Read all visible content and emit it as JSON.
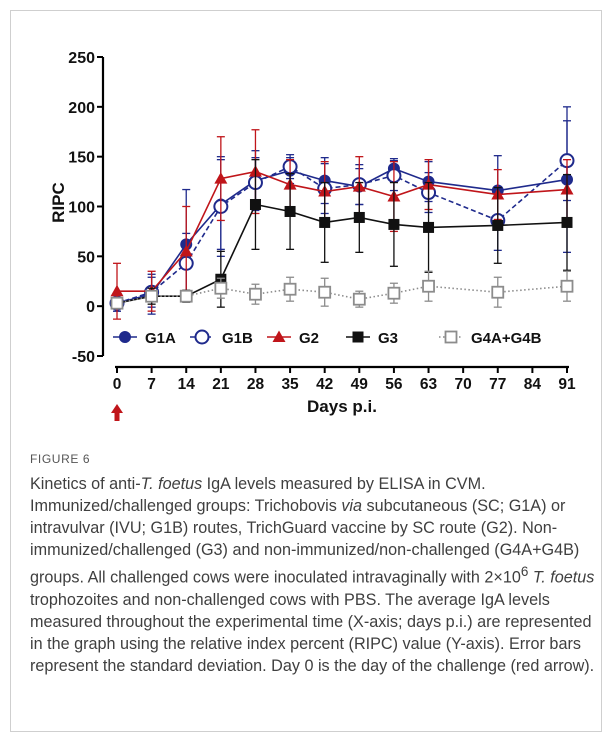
{
  "chart_data": {
    "type": "line",
    "xlabel": "Days p.i.",
    "ylabel": "RIPC",
    "x": [
      0,
      7,
      14,
      21,
      28,
      35,
      42,
      49,
      56,
      63,
      70,
      77,
      84,
      91
    ],
    "x_ticks": [
      "0",
      "7",
      "14",
      "21",
      "28",
      "35",
      "42",
      "49",
      "56",
      "63",
      "70",
      "77",
      "84",
      "91"
    ],
    "xlim": [
      0,
      91
    ],
    "ylim": [
      -50,
      250
    ],
    "y_ticks": [
      "250",
      "200",
      "150",
      "100",
      "50",
      "0",
      "-50"
    ],
    "grid": false,
    "legend_position": "bottom-inside",
    "series": [
      {
        "name": "G1A",
        "marker": "filled-circle",
        "line": "solid",
        "color": "#1f2a8c",
        "points": [
          {
            "x": 0,
            "y": 3,
            "err": 8
          },
          {
            "x": 7,
            "y": 12,
            "err": 20
          },
          {
            "x": 14,
            "y": 62,
            "err": 55
          },
          {
            "x": 21,
            "y": 102,
            "err": 45
          },
          {
            "x": 28,
            "y": 126,
            "err": 30
          },
          {
            "x": 35,
            "y": 136,
            "err": 13
          },
          {
            "x": 42,
            "y": 126,
            "err": 23
          },
          {
            "x": 49,
            "y": 120,
            "err": 18
          },
          {
            "x": 56,
            "y": 138,
            "err": 10
          },
          {
            "x": 63,
            "y": 125,
            "err": 20
          },
          {
            "x": 77,
            "y": 116,
            "err": 35
          },
          {
            "x": 91,
            "y": 127,
            "err": 73
          }
        ]
      },
      {
        "name": "G1B",
        "marker": "open-circle",
        "line": "dashed",
        "color": "#1f2a8c",
        "points": [
          {
            "x": 0,
            "y": 3,
            "err": 8
          },
          {
            "x": 7,
            "y": 14,
            "err": 15
          },
          {
            "x": 14,
            "y": 43,
            "err": 30
          },
          {
            "x": 21,
            "y": 100,
            "err": 50
          },
          {
            "x": 28,
            "y": 124,
            "err": 25
          },
          {
            "x": 35,
            "y": 140,
            "err": 12
          },
          {
            "x": 42,
            "y": 118,
            "err": 25
          },
          {
            "x": 49,
            "y": 122,
            "err": 20
          },
          {
            "x": 56,
            "y": 131,
            "err": 15
          },
          {
            "x": 63,
            "y": 114,
            "err": 20
          },
          {
            "x": 77,
            "y": 86,
            "err": 30
          },
          {
            "x": 91,
            "y": 146,
            "err": 40
          }
        ]
      },
      {
        "name": "G2",
        "marker": "filled-triangle",
        "line": "solid",
        "color": "#c0151a",
        "points": [
          {
            "x": 0,
            "y": 15,
            "err": 28
          },
          {
            "x": 7,
            "y": 15,
            "err": 20
          },
          {
            "x": 14,
            "y": 55,
            "err": 45
          },
          {
            "x": 21,
            "y": 128,
            "err": 42
          },
          {
            "x": 28,
            "y": 135,
            "err": 42
          },
          {
            "x": 35,
            "y": 122,
            "err": 25
          },
          {
            "x": 42,
            "y": 115,
            "err": 30
          },
          {
            "x": 49,
            "y": 120,
            "err": 30
          },
          {
            "x": 56,
            "y": 110,
            "err": 35
          },
          {
            "x": 63,
            "y": 122,
            "err": 25
          },
          {
            "x": 77,
            "y": 112,
            "err": 25
          },
          {
            "x": 91,
            "y": 117,
            "err": 30
          }
        ]
      },
      {
        "name": "G3",
        "marker": "filled-square",
        "line": "solid",
        "color": "#111111",
        "points": [
          {
            "x": 0,
            "y": 3,
            "err": 5
          },
          {
            "x": 7,
            "y": 10,
            "err": 8
          },
          {
            "x": 14,
            "y": 10,
            "err": 6
          },
          {
            "x": 21,
            "y": 27,
            "err": 28
          },
          {
            "x": 28,
            "y": 102,
            "err": 45
          },
          {
            "x": 35,
            "y": 95,
            "err": 38
          },
          {
            "x": 42,
            "y": 84,
            "err": 40
          },
          {
            "x": 49,
            "y": 89,
            "err": 35
          },
          {
            "x": 56,
            "y": 82,
            "err": 42
          },
          {
            "x": 63,
            "y": 79,
            "err": 45
          },
          {
            "x": 77,
            "y": 81,
            "err": 38
          },
          {
            "x": 91,
            "y": 84,
            "err": 48
          }
        ]
      },
      {
        "name": "G4A+G4B",
        "marker": "open-square",
        "line": "dotted",
        "color": "#8c8c8c",
        "points": [
          {
            "x": 0,
            "y": 3,
            "err": 5
          },
          {
            "x": 7,
            "y": 10,
            "err": 5
          },
          {
            "x": 14,
            "y": 10,
            "err": 5
          },
          {
            "x": 21,
            "y": 18,
            "err": 10
          },
          {
            "x": 28,
            "y": 12,
            "err": 10
          },
          {
            "x": 35,
            "y": 17,
            "err": 12
          },
          {
            "x": 42,
            "y": 14,
            "err": 14
          },
          {
            "x": 49,
            "y": 7,
            "err": 8
          },
          {
            "x": 56,
            "y": 13,
            "err": 10
          },
          {
            "x": 63,
            "y": 20,
            "err": 15
          },
          {
            "x": 77,
            "y": 14,
            "err": 15
          },
          {
            "x": 91,
            "y": 20,
            "err": 15
          }
        ]
      }
    ],
    "annotations": [
      {
        "type": "arrow",
        "at_x": 0,
        "direction": "up",
        "color": "#c0151a"
      }
    ]
  },
  "figure": {
    "label": "FIGURE 6",
    "caption": [
      {
        "text": "Kinetics of anti-"
      },
      {
        "text": "T. foetus",
        "style": "italic"
      },
      {
        "text": " IgA levels measured by ELISA in CVM. Immunized/challenged groups: Trichobovis "
      },
      {
        "text": "via",
        "style": "italic"
      },
      {
        "text": " subcutaneous (SC; G1A) or intravulvar (IVU; G1B) routes, TrichGuard vaccine by SC route (G2). Non-immunized/challenged (G3) and non-immunized/non-challenged (G4A+G4B) groups. All challenged cows were inoculated intravaginally with 2×10"
      },
      {
        "text": "6",
        "style": "sup"
      },
      {
        "text": " "
      },
      {
        "text": "T. foetus",
        "style": "italic"
      },
      {
        "text": " trophozoites and non-challenged cows with PBS. The average IgA levels measured throughout the experimental time (X-axis; days p.i.) are represented in the graph using the relative index percent (RIPC) value (Y-axis). Error bars represent the standard deviation. Day 0 is the day of the challenge (red arrow)."
      }
    ]
  }
}
